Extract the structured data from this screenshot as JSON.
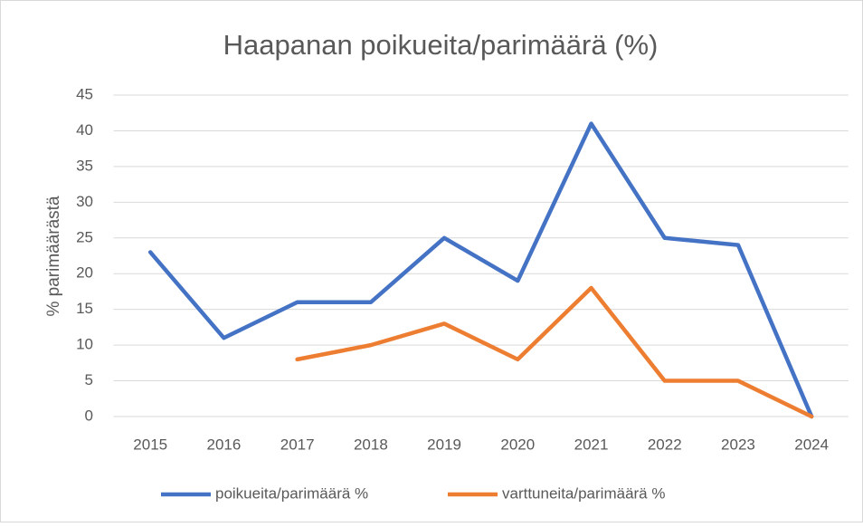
{
  "chart_data": {
    "type": "line",
    "title": "Haapanan poikueita/parimäärä (%)",
    "y_label": "% parimäärästä",
    "categories": [
      "2015",
      "2016",
      "2017",
      "2018",
      "2019",
      "2020",
      "2021",
      "2022",
      "2023",
      "2024"
    ],
    "series": [
      {
        "name": "poikueita/parimäärä %",
        "color": "#4472c4",
        "values": [
          23,
          11,
          16,
          16,
          25,
          19,
          41,
          25,
          24,
          0
        ]
      },
      {
        "name": "varttuneita/parimäärä %",
        "color": "#ed7d31",
        "values": [
          null,
          null,
          8,
          10,
          13,
          8,
          18,
          5,
          5,
          0
        ]
      }
    ],
    "ylim": [
      0,
      45
    ],
    "yticks": [
      0,
      5,
      10,
      15,
      20,
      25,
      30,
      35,
      40,
      45
    ],
    "grid": true,
    "legend": "bottom"
  }
}
